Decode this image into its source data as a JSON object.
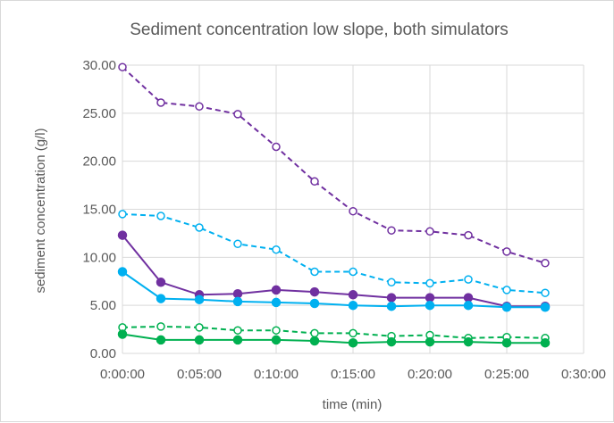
{
  "chart_data": {
    "type": "line",
    "title": "Sediment concentration low slope, both simulators",
    "xlabel": "time (min)",
    "ylabel": "sediment concentration (g/l)",
    "xlim": [
      "0:00:00",
      "0:30:00"
    ],
    "ylim": [
      0,
      30
    ],
    "grid": true,
    "legend": "none",
    "x_tick_labels": [
      "0:00:00",
      "0:05:00",
      "0:10:00",
      "0:15:00",
      "0:20:00",
      "0:25:00",
      "0:30:00"
    ],
    "y_tick_labels": [
      "0.00",
      "5.00",
      "10.00",
      "15.00",
      "20.00",
      "25.00",
      "30.00"
    ],
    "x": [
      "0:00:00",
      "0:02:30",
      "0:05:00",
      "0:07:30",
      "0:10:00",
      "0:12:30",
      "0:15:00",
      "0:17:30",
      "0:20:00",
      "0:22:30",
      "0:25:00",
      "0:27:30"
    ],
    "series": [
      {
        "color": "#7030a0",
        "dashed": true,
        "marker": "open-circle",
        "values": [
          29.8,
          26.1,
          25.7,
          24.9,
          21.5,
          17.9,
          14.8,
          12.8,
          12.7,
          12.3,
          10.6,
          9.4
        ]
      },
      {
        "color": "#00b0f0",
        "dashed": true,
        "marker": "open-circle",
        "values": [
          14.5,
          14.3,
          13.1,
          11.4,
          10.8,
          8.5,
          8.5,
          7.4,
          7.3,
          7.7,
          6.6,
          6.3
        ]
      },
      {
        "color": "#7030a0",
        "dashed": false,
        "marker": "filled-circle",
        "values": [
          12.3,
          7.4,
          6.1,
          6.2,
          6.6,
          6.4,
          6.1,
          5.8,
          5.8,
          5.8,
          4.9,
          4.9
        ]
      },
      {
        "color": "#00b0f0",
        "dashed": false,
        "marker": "filled-circle",
        "values": [
          8.5,
          5.7,
          5.6,
          5.4,
          5.3,
          5.2,
          5.0,
          4.9,
          5.0,
          5.0,
          4.8,
          4.8
        ]
      },
      {
        "color": "#00b050",
        "dashed": true,
        "marker": "open-circle",
        "values": [
          2.7,
          2.8,
          2.7,
          2.4,
          2.4,
          2.1,
          2.1,
          1.8,
          1.9,
          1.6,
          1.7,
          1.6
        ]
      },
      {
        "color": "#00b050",
        "dashed": false,
        "marker": "filled-circle",
        "values": [
          2.0,
          1.4,
          1.4,
          1.4,
          1.4,
          1.3,
          1.1,
          1.2,
          1.2,
          1.2,
          1.1,
          1.1
        ]
      }
    ]
  }
}
